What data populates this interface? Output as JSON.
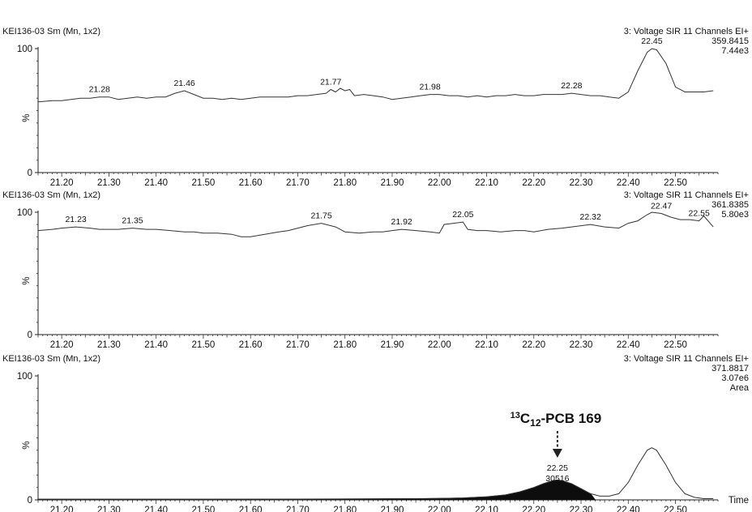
{
  "chart_data": [
    {
      "type": "line",
      "header_left": "KEI136-03 Sm (Mn, 1x2)",
      "header_right": [
        "3: Voltage SIR 11 Channels EI+",
        "359.8415",
        "7.44e3"
      ],
      "xlim": [
        21.15,
        22.59
      ],
      "ylim": [
        0,
        100
      ],
      "y_ticks": [
        "100",
        "%",
        "0"
      ],
      "x_ticks": [
        "21.20",
        "21.30",
        "21.40",
        "21.50",
        "21.60",
        "21.70",
        "21.80",
        "21.90",
        "22.00",
        "22.10",
        "22.20",
        "22.30",
        "22.40",
        "22.50"
      ],
      "series": [
        {
          "x": [
            21.15,
            21.18,
            21.2,
            21.22,
            21.24,
            21.26,
            21.28,
            21.3,
            21.32,
            21.34,
            21.36,
            21.38,
            21.4,
            21.42,
            21.44,
            21.46,
            21.48,
            21.5,
            21.52,
            21.54,
            21.56,
            21.58,
            21.6,
            21.62,
            21.64,
            21.66,
            21.68,
            21.7,
            21.72,
            21.74,
            21.76,
            21.77,
            21.78,
            21.79,
            21.8,
            21.81,
            21.82,
            21.84,
            21.86,
            21.88,
            21.9,
            21.92,
            21.94,
            21.96,
            21.98,
            22.0,
            22.02,
            22.04,
            22.06,
            22.08,
            22.1,
            22.12,
            22.14,
            22.16,
            22.18,
            22.2,
            22.22,
            22.24,
            22.26,
            22.28,
            22.3,
            22.32,
            22.34,
            22.36,
            22.38,
            22.4,
            22.42,
            22.44,
            22.45,
            22.46,
            22.48,
            22.5,
            22.52,
            22.54,
            22.56,
            22.58
          ],
          "y": [
            57,
            58,
            58,
            59,
            60,
            60,
            61,
            61,
            59,
            60,
            61,
            60,
            61,
            61,
            64,
            66,
            63,
            60,
            60,
            59,
            60,
            59,
            60,
            61,
            61,
            61,
            61,
            62,
            62,
            63,
            64,
            67,
            65,
            68,
            66,
            67,
            62,
            63,
            62,
            61,
            59,
            60,
            61,
            62,
            63,
            63,
            62,
            62,
            61,
            62,
            61,
            62,
            62,
            63,
            62,
            62,
            63,
            63,
            63,
            64,
            63,
            62,
            62,
            61,
            60,
            65,
            82,
            97,
            100,
            99,
            88,
            69,
            65,
            65,
            65,
            66
          ]
        }
      ],
      "peaks": [
        {
          "x": 21.28,
          "label": "21.28"
        },
        {
          "x": 21.46,
          "label": "21.46"
        },
        {
          "x": 21.77,
          "label": "21.77"
        },
        {
          "x": 21.98,
          "label": "21.98"
        },
        {
          "x": 22.28,
          "label": "22.28"
        },
        {
          "x": 22.45,
          "label": "22.45"
        }
      ]
    },
    {
      "type": "line",
      "header_left": "KEI136-03 Sm (Mn, 1x2)",
      "header_right": [
        "3: Voltage SIR 11 Channels EI+",
        "361.8385",
        "5.80e3"
      ],
      "xlim": [
        21.15,
        22.59
      ],
      "ylim": [
        0,
        100
      ],
      "y_ticks": [
        "100",
        "%",
        "0"
      ],
      "x_ticks": [
        "21.20",
        "21.30",
        "21.40",
        "21.50",
        "21.60",
        "21.70",
        "21.80",
        "21.90",
        "22.00",
        "22.10",
        "22.20",
        "22.30",
        "22.40",
        "22.50"
      ],
      "series": [
        {
          "x": [
            21.15,
            21.18,
            21.2,
            21.23,
            21.26,
            21.28,
            21.3,
            21.32,
            21.35,
            21.38,
            21.4,
            21.43,
            21.46,
            21.48,
            21.5,
            21.53,
            21.56,
            21.58,
            21.6,
            21.63,
            21.66,
            21.68,
            21.7,
            21.72,
            21.75,
            21.78,
            21.8,
            21.83,
            21.86,
            21.88,
            21.9,
            21.92,
            21.95,
            21.98,
            22.0,
            22.01,
            22.03,
            22.05,
            22.06,
            22.08,
            22.1,
            22.13,
            22.16,
            22.18,
            22.2,
            22.23,
            22.26,
            22.28,
            22.3,
            22.32,
            22.35,
            22.38,
            22.4,
            22.42,
            22.44,
            22.45,
            22.47,
            22.49,
            22.51,
            22.53,
            22.55,
            22.56,
            22.58
          ],
          "y": [
            85,
            86,
            87,
            88,
            87,
            86,
            86,
            86,
            87,
            86,
            86,
            85,
            84,
            84,
            83,
            83,
            82,
            80,
            80,
            82,
            84,
            85,
            87,
            89,
            91,
            88,
            84,
            83,
            84,
            84,
            85,
            86,
            85,
            84,
            83,
            90,
            91,
            92,
            86,
            85,
            85,
            84,
            85,
            85,
            84,
            86,
            87,
            88,
            89,
            90,
            88,
            87,
            91,
            93,
            98,
            100,
            99,
            96,
            94,
            94,
            93,
            97,
            88
          ]
        }
      ],
      "peaks": [
        {
          "x": 21.23,
          "label": "21.23"
        },
        {
          "x": 21.35,
          "label": "21.35"
        },
        {
          "x": 21.75,
          "label": "21.75"
        },
        {
          "x": 21.92,
          "label": "21.92"
        },
        {
          "x": 22.05,
          "label": "22.05"
        },
        {
          "x": 22.32,
          "label": "22.32"
        },
        {
          "x": 22.47,
          "label": "22.47"
        },
        {
          "x": 22.55,
          "label": "22.55"
        }
      ]
    },
    {
      "type": "area",
      "header_left": "KEI136-03 Sm (Mn, 1x2)",
      "header_right": [
        "3: Voltage SIR 11 Channels EI+",
        "371.8817",
        "3.07e6",
        "Area"
      ],
      "xlim": [
        21.15,
        22.59
      ],
      "ylim": [
        0,
        100
      ],
      "y_ticks": [
        "100",
        "%",
        "0"
      ],
      "x_ticks": [
        "21.20",
        "21.30",
        "21.40",
        "21.50",
        "21.60",
        "21.70",
        "21.80",
        "21.90",
        "22.00",
        "22.10",
        "22.20",
        "22.30",
        "22.40",
        "22.50"
      ],
      "x_axis_label": "Time",
      "series": [
        {
          "x": [
            21.15,
            21.3,
            21.5,
            21.7,
            21.85,
            21.95,
            22.0,
            22.05,
            22.1,
            22.14,
            22.17,
            22.2,
            22.22,
            22.24,
            22.25,
            22.26,
            22.28,
            22.3,
            22.32,
            22.34,
            22.36,
            22.38,
            22.4,
            22.42,
            22.44,
            22.45,
            22.46,
            22.48,
            22.5,
            22.52,
            22.54,
            22.56,
            22.58
          ],
          "y": [
            0.5,
            0.5,
            0.5,
            0.6,
            0.8,
            1,
            1.2,
            1.6,
            2.5,
            4,
            6.5,
            10,
            13,
            15.5,
            16,
            15.5,
            13,
            9,
            5,
            3,
            3,
            5,
            14,
            28,
            40,
            42,
            40,
            28,
            14,
            5,
            2,
            1,
            1
          ]
        }
      ],
      "integrated_peak": {
        "x_start": 21.15,
        "x_end": 22.33,
        "apex": 22.25,
        "label": "22.25",
        "area": "30516"
      },
      "annotation": {
        "text_sup": "13",
        "text_main": "C",
        "text_sub": "12",
        "text_tail": "-PCB 169",
        "x": 22.25
      }
    }
  ]
}
